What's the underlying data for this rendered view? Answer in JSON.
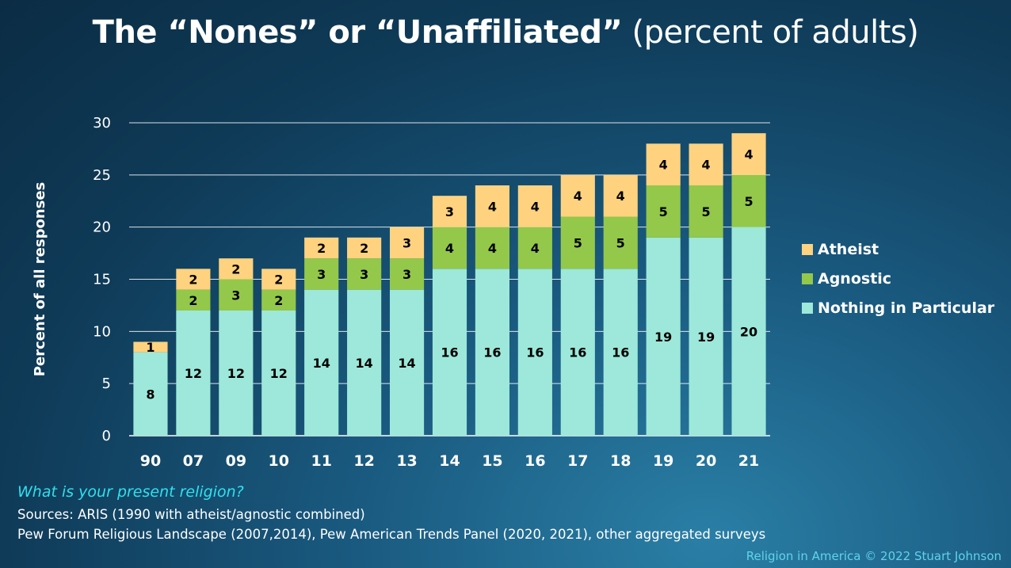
{
  "title": {
    "bold": "The “Nones” or “Unaffiliated”",
    "normal": "(percent of adults)"
  },
  "chart_data": {
    "type": "bar",
    "stacked": true,
    "categories": [
      "90",
      "07",
      "09",
      "10",
      "11",
      "12",
      "13",
      "14",
      "15",
      "16",
      "17",
      "18",
      "19",
      "20",
      "21"
    ],
    "series": [
      {
        "name": "Nothing in Particular",
        "color": "#9de8da",
        "values": [
          8,
          12,
          12,
          12,
          14,
          14,
          14,
          16,
          16,
          16,
          16,
          16,
          19,
          19,
          20
        ]
      },
      {
        "name": "Agnostic",
        "color": "#93c84a",
        "values": [
          null,
          2,
          3,
          2,
          3,
          3,
          3,
          4,
          4,
          4,
          5,
          5,
          5,
          5,
          5
        ]
      },
      {
        "name": "Atheist",
        "color": "#ffd27f",
        "values": [
          1,
          2,
          2,
          2,
          2,
          2,
          3,
          3,
          4,
          4,
          4,
          4,
          4,
          4,
          4
        ]
      }
    ],
    "ylabel": "Percent of all responses",
    "ylim": [
      0,
      30
    ],
    "yticks": [
      0,
      5,
      10,
      15,
      20,
      25,
      30
    ],
    "grid": true,
    "legend": "right"
  },
  "legend": [
    {
      "label": "Atheist",
      "color": "#ffd27f"
    },
    {
      "label": "Agnostic",
      "color": "#93c84a"
    },
    {
      "label": "Nothing in Particular",
      "color": "#9de8da"
    }
  ],
  "question": "What is your present religion?",
  "sources": [
    "Sources: ARIS (1990 with atheist/agnostic combined)",
    "Pew Forum Religious Landscape (2007,2014), Pew American Trends Panel (2020, 2021), other aggregated surveys"
  ],
  "credit": "Religion in America © 2022 Stuart Johnson"
}
